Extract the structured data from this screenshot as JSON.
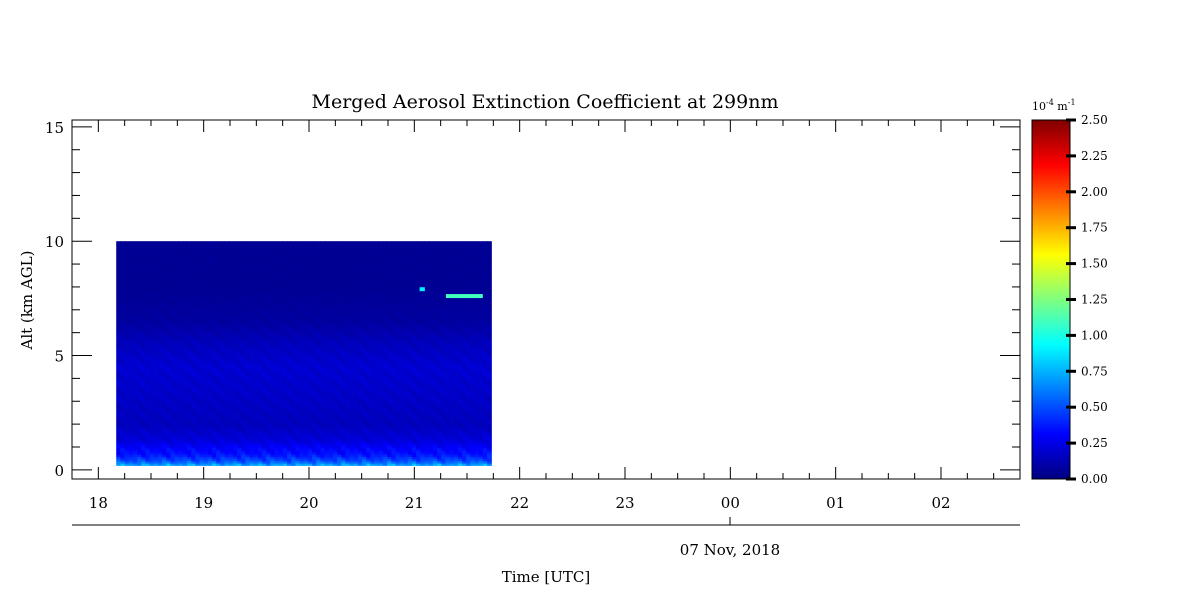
{
  "chart_data": {
    "type": "heatmap",
    "title": "Merged Aerosol Extinction Coefficient at 299nm",
    "ylabel": "Alt (km AGL)",
    "xlabel": "Time [UTC]",
    "date_label": "07 Nov, 2018",
    "x_tick_labels": [
      "18",
      "19",
      "20",
      "21",
      "22",
      "23",
      "00",
      "01",
      "02"
    ],
    "xlim_hours": [
      17.75,
      26.75
    ],
    "y_ticks": [
      0,
      5,
      10,
      15
    ],
    "ylim": [
      -0.4,
      15.3
    ],
    "data_extent": {
      "time_start": 18.17,
      "time_end": 21.73,
      "alt_min": 0.2,
      "alt_max": 10.0
    },
    "colorbar": {
      "unit_base": "10",
      "unit_exp": "-4",
      "unit_rest": " m",
      "unit_exp2": "-1",
      "min": 0.0,
      "max": 2.5,
      "tick_labels": [
        "0.00",
        "0.25",
        "0.50",
        "0.75",
        "1.00",
        "1.25",
        "1.50",
        "1.75",
        "2.00",
        "2.25",
        "2.50"
      ],
      "colormap": "jet"
    },
    "profile": [
      {
        "alt": 0.2,
        "value": 0.75
      },
      {
        "alt": 0.4,
        "value": 0.5
      },
      {
        "alt": 0.7,
        "value": 0.35
      },
      {
        "alt": 1.0,
        "value": 0.3
      },
      {
        "alt": 1.3,
        "value": 0.22
      },
      {
        "alt": 2.0,
        "value": 0.15
      },
      {
        "alt": 3.0,
        "value": 0.17
      },
      {
        "alt": 4.5,
        "value": 0.2
      },
      {
        "alt": 5.5,
        "value": 0.15
      },
      {
        "alt": 6.5,
        "value": 0.08
      },
      {
        "alt": 8.0,
        "value": 0.05
      },
      {
        "alt": 10.0,
        "value": 0.05
      }
    ],
    "features": [
      {
        "time_start": 21.3,
        "time_end": 21.65,
        "alt": 7.6,
        "value": 1.1
      },
      {
        "time_start": 21.05,
        "time_end": 21.1,
        "alt": 7.9,
        "value": 0.9
      }
    ]
  }
}
